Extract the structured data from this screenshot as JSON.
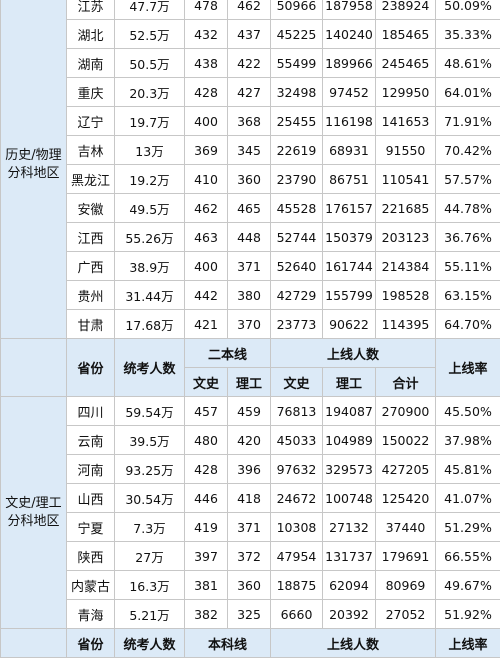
{
  "section1": {
    "group_label": "历史/物理\n分科地区",
    "rows": [
      {
        "province": "江苏",
        "examinees": "47.7万",
        "line_wen": "478",
        "line_li": "462",
        "online_wen": "50966",
        "online_li": "187958",
        "online_total": "238924",
        "rate": "50.09%"
      },
      {
        "province": "湖北",
        "examinees": "52.5万",
        "line_wen": "432",
        "line_li": "437",
        "online_wen": "45225",
        "online_li": "140240",
        "online_total": "185465",
        "rate": "35.33%"
      },
      {
        "province": "湖南",
        "examinees": "50.5万",
        "line_wen": "438",
        "line_li": "422",
        "online_wen": "55499",
        "online_li": "189966",
        "online_total": "245465",
        "rate": "48.61%"
      },
      {
        "province": "重庆",
        "examinees": "20.3万",
        "line_wen": "428",
        "line_li": "427",
        "online_wen": "32498",
        "online_li": "97452",
        "online_total": "129950",
        "rate": "64.01%"
      },
      {
        "province": "辽宁",
        "examinees": "19.7万",
        "line_wen": "400",
        "line_li": "368",
        "online_wen": "25455",
        "online_li": "116198",
        "online_total": "141653",
        "rate": "71.91%"
      },
      {
        "province": "吉林",
        "examinees": "13万",
        "line_wen": "369",
        "line_li": "345",
        "online_wen": "22619",
        "online_li": "68931",
        "online_total": "91550",
        "rate": "70.42%"
      },
      {
        "province": "黑龙江",
        "examinees": "19.2万",
        "line_wen": "410",
        "line_li": "360",
        "online_wen": "23790",
        "online_li": "86751",
        "online_total": "110541",
        "rate": "57.57%"
      },
      {
        "province": "安徽",
        "examinees": "49.5万",
        "line_wen": "462",
        "line_li": "465",
        "online_wen": "45528",
        "online_li": "176157",
        "online_total": "221685",
        "rate": "44.78%"
      },
      {
        "province": "江西",
        "examinees": "55.26万",
        "line_wen": "463",
        "line_li": "448",
        "online_wen": "52744",
        "online_li": "150379",
        "online_total": "203123",
        "rate": "36.76%"
      },
      {
        "province": "广西",
        "examinees": "38.9万",
        "line_wen": "400",
        "line_li": "371",
        "online_wen": "52640",
        "online_li": "161744",
        "online_total": "214384",
        "rate": "55.11%"
      },
      {
        "province": "贵州",
        "examinees": "31.44万",
        "line_wen": "442",
        "line_li": "380",
        "online_wen": "42729",
        "online_li": "155799",
        "online_total": "198528",
        "rate": "63.15%"
      },
      {
        "province": "甘肃",
        "examinees": "17.68万",
        "line_wen": "421",
        "line_li": "370",
        "online_wen": "23773",
        "online_li": "90622",
        "online_total": "114395",
        "rate": "64.70%"
      }
    ]
  },
  "header": {
    "province": "省份",
    "examinees": "统考人数",
    "second_line": "二本线",
    "online": "上线人数",
    "rate": "上线率",
    "wen": "文史",
    "li": "理工",
    "total": "合计"
  },
  "section2": {
    "group_label": "文史/理工\n分科地区",
    "rows": [
      {
        "province": "四川",
        "examinees": "59.54万",
        "line_wen": "457",
        "line_li": "459",
        "online_wen": "76813",
        "online_li": "194087",
        "online_total": "270900",
        "rate": "45.50%"
      },
      {
        "province": "云南",
        "examinees": "39.5万",
        "line_wen": "480",
        "line_li": "420",
        "online_wen": "45033",
        "online_li": "104989",
        "online_total": "150022",
        "rate": "37.98%"
      },
      {
        "province": "河南",
        "examinees": "93.25万",
        "line_wen": "428",
        "line_li": "396",
        "online_wen": "97632",
        "online_li": "329573",
        "online_total": "427205",
        "rate": "45.81%"
      },
      {
        "province": "山西",
        "examinees": "30.54万",
        "line_wen": "446",
        "line_li": "418",
        "online_wen": "24672",
        "online_li": "100748",
        "online_total": "125420",
        "rate": "41.07%"
      },
      {
        "province": "宁夏",
        "examinees": "7.3万",
        "line_wen": "419",
        "line_li": "371",
        "online_wen": "10308",
        "online_li": "27132",
        "online_total": "37440",
        "rate": "51.29%"
      },
      {
        "province": "陕西",
        "examinees": "27万",
        "line_wen": "397",
        "line_li": "372",
        "online_wen": "47954",
        "online_li": "131737",
        "online_total": "179691",
        "rate": "66.55%"
      },
      {
        "province": "内蒙古",
        "examinees": "16.3万",
        "line_wen": "381",
        "line_li": "360",
        "online_wen": "18875",
        "online_li": "62094",
        "online_total": "80969",
        "rate": "49.67%"
      },
      {
        "province": "青海",
        "examinees": "5.21万",
        "line_wen": "382",
        "line_li": "325",
        "online_wen": "6660",
        "online_li": "20392",
        "online_total": "27052",
        "rate": "51.92%"
      }
    ]
  },
  "footer_header": {
    "province": "省份",
    "examinees": "统考人数",
    "first_line": "本科线",
    "online": "上线人数",
    "rate": "上线率"
  }
}
